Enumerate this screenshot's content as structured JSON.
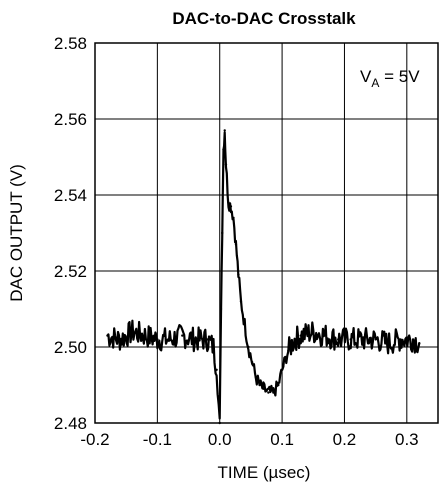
{
  "chart_data": {
    "type": "line",
    "title": "DAC-to-DAC Crosstalk",
    "xlabel": "TIME (µsec)",
    "ylabel": "DAC OUTPUT (V)",
    "xlim": [
      -0.2,
      0.35
    ],
    "ylim": [
      2.48,
      2.58
    ],
    "xticks": [
      -0.2,
      -0.1,
      0.0,
      0.1,
      0.2,
      0.3
    ],
    "xtick_labels": [
      "-0.2",
      "-0.1",
      "0.0",
      "0.1",
      "0.2",
      "0.3"
    ],
    "yticks": [
      2.48,
      2.5,
      2.52,
      2.54,
      2.56,
      2.58
    ],
    "ytick_labels": [
      "2.48",
      "2.50",
      "2.52",
      "2.54",
      "2.56",
      "2.58"
    ],
    "grid": true,
    "annotation": {
      "main": "V",
      "sub": "A",
      "rest": " = 5V",
      "placement": "top-right"
    },
    "series": [
      {
        "color": "#000000",
        "x": [
          -0.18,
          -0.16,
          -0.14,
          -0.12,
          -0.1,
          -0.08,
          -0.06,
          -0.04,
          -0.02,
          -0.01,
          -0.005,
          0.0,
          0.002,
          0.004,
          0.006,
          0.008,
          0.01,
          0.014,
          0.018,
          0.022,
          0.026,
          0.03,
          0.034,
          0.04,
          0.046,
          0.052,
          0.058,
          0.064,
          0.07,
          0.078,
          0.086,
          0.094,
          0.102,
          0.11,
          0.12,
          0.13,
          0.15,
          0.17,
          0.19,
          0.21,
          0.23,
          0.25,
          0.27,
          0.29,
          0.31,
          0.32
        ],
        "y": [
          2.503,
          2.502,
          2.504,
          2.503,
          2.502,
          2.502,
          2.503,
          2.502,
          2.502,
          2.5,
          2.494,
          2.48,
          2.51,
          2.53,
          2.552,
          2.557,
          2.548,
          2.538,
          2.537,
          2.534,
          2.527,
          2.519,
          2.512,
          2.506,
          2.5,
          2.496,
          2.492,
          2.49,
          2.489,
          2.488,
          2.488,
          2.49,
          2.495,
          2.499,
          2.502,
          2.503,
          2.504,
          2.503,
          2.502,
          2.502,
          2.502,
          2.502,
          2.501,
          2.502,
          2.502,
          2.501
        ]
      }
    ]
  }
}
